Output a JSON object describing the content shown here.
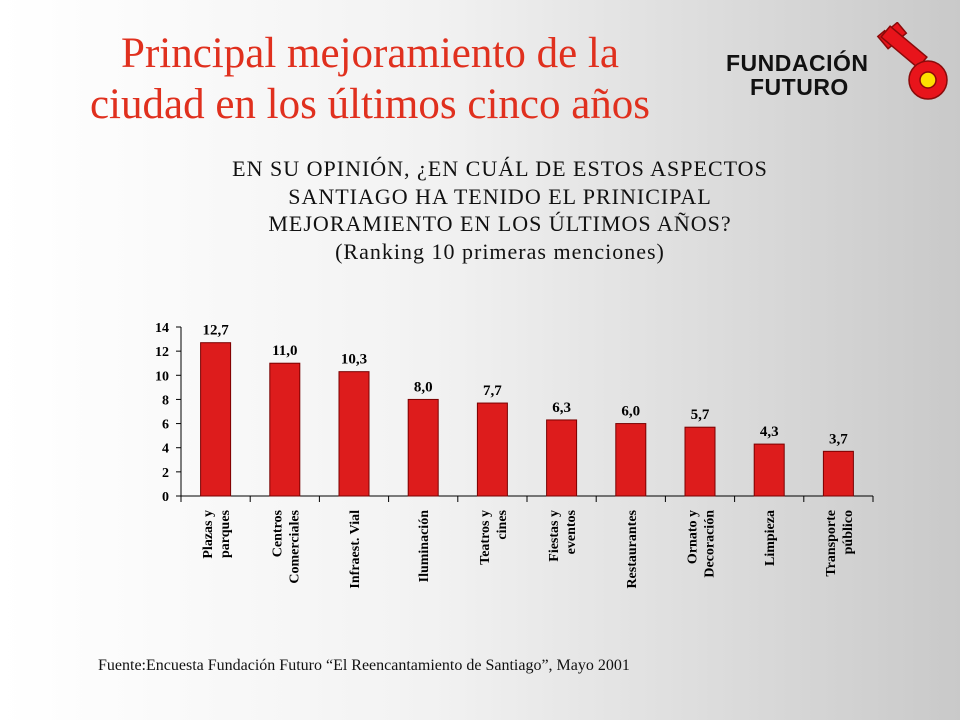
{
  "title": {
    "line1": "Principal mejoramiento de la",
    "line2": "ciudad en los últimos cinco años"
  },
  "logo": {
    "line1": "FUNDACIÓN",
    "line2": "FUTURO",
    "color": "#e8141b"
  },
  "question": {
    "line1": "EN SU OPINIÓN, ¿EN CUÁL DE ESTOS ASPECTOS",
    "line2": "SANTIAGO HA TENIDO EL PRINICIPAL",
    "line3": "MEJORAMIENTO EN LOS ÚLTIMOS AÑOS?",
    "line4": "(Ranking 10 primeras menciones)"
  },
  "chart_data": {
    "type": "bar",
    "categories": [
      [
        "Plazas y",
        "parques"
      ],
      [
        "Centros",
        "Comerciales"
      ],
      [
        "Infraest. Vial"
      ],
      [
        "Iluminación"
      ],
      [
        "Teatros y",
        "cines"
      ],
      [
        "Fiestas y",
        "eventos"
      ],
      [
        "Restaurantes"
      ],
      [
        "Ornato y",
        "Decoración"
      ],
      [
        "Limpieza"
      ],
      [
        "Transporte",
        "público"
      ]
    ],
    "values": [
      12.7,
      11.0,
      10.3,
      8.0,
      7.7,
      6.3,
      6.0,
      5.7,
      4.3,
      3.7
    ],
    "data_labels": [
      "12,7",
      "11,0",
      "10,3",
      "8,0",
      "7,7",
      "6,3",
      "6,0",
      "5,7",
      "4,3",
      "3,7"
    ],
    "yticks": [
      "0",
      "2",
      "4",
      "6",
      "8",
      "10",
      "12",
      "14"
    ],
    "ylim": [
      0,
      14
    ],
    "bar_color": "#dd1c1c",
    "grid": false,
    "xlabel": "",
    "ylabel": ""
  },
  "source": "Fuente:Encuesta Fundación Futuro  “El Reencantamiento de Santiago”, Mayo 2001"
}
